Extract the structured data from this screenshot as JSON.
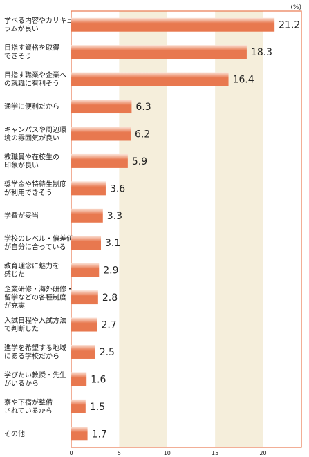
{
  "chart_data": {
    "type": "bar",
    "orientation": "horizontal",
    "unit": "(%)",
    "categories": [
      [
        "学べる内容やカリキュ",
        "ラムが良い"
      ],
      [
        "目指す資格を取得",
        "できそう"
      ],
      [
        "目指す職業や企業へ",
        "の就職に有利そう"
      ],
      [
        "通学に便利だから"
      ],
      [
        "キャンパスや周辺環",
        "境の雰囲気が良い"
      ],
      [
        "教職員や在校生の",
        "印象が良い"
      ],
      [
        "奨学金や特待生制度",
        "が利用できそう"
      ],
      [
        "学費が妥当"
      ],
      [
        "学校のレベル・偏差値",
        "が自分に合っている"
      ],
      [
        "教育理念に魅力を",
        "感じた"
      ],
      [
        "企業研修・海外研修・",
        "留学などの各種制度",
        "が充実"
      ],
      [
        "入試日程や入試方法",
        "で判断した"
      ],
      [
        "進学を希望する地域",
        "にある学校だから"
      ],
      [
        "学びたい教授・先生",
        "がいるから"
      ],
      [
        "寮や下宿が整備",
        "されているから"
      ],
      [
        "その他"
      ]
    ],
    "values": [
      21.2,
      18.3,
      16.4,
      6.3,
      6.2,
      5.9,
      3.6,
      3.3,
      3.1,
      2.9,
      2.8,
      2.7,
      2.5,
      1.6,
      1.5,
      1.7
    ],
    "value_labels": [
      "21.2",
      "18.3",
      "16.4",
      "6.3",
      "6.2",
      "5.9",
      "3.6",
      "3.3",
      "3.1",
      "2.9",
      "2.8",
      "2.7",
      "2.5",
      "1.6",
      "1.5",
      "1.7"
    ],
    "xlim": [
      0,
      24
    ],
    "xticks": [
      0,
      5,
      10,
      15,
      20
    ],
    "shaded_bands": [
      [
        5,
        10
      ],
      [
        15,
        20
      ]
    ],
    "bar_color": "#e8784f",
    "bar_highlight_color": "#fbe3d8",
    "band_color": "#f5eedb",
    "frame_color": "#e8784f"
  }
}
